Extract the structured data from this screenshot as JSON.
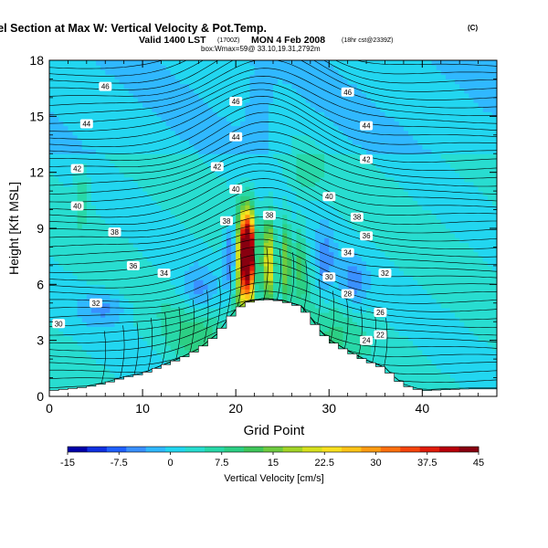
{
  "chart_data": {
    "type": "heatmap",
    "title": {
      "main": "Wind-Parallel Section at Max W: Vertical Velocity & Pot.Temp.",
      "main_mark": "(C)",
      "line2_a": "Valid 1400 LST",
      "line2_b": "(1700Z)",
      "line2_c": "MON 4 Feb 2008",
      "line2_d": "(18hr cst@2339Z)",
      "line3": "box:Wmax=59@ 33.10,19.31,2792m"
    },
    "xlabel": "Grid Point",
    "ylabel": "Height [Kft MSL]",
    "xlim": [
      0,
      48
    ],
    "ylim": [
      0,
      18
    ],
    "xticks": [
      "0",
      "10",
      "20",
      "30",
      "40"
    ],
    "yticks": [
      "0",
      "3",
      "6",
      "9",
      "12",
      "15",
      "18"
    ],
    "colorbar": {
      "label": "Vertical Velocity [cm/s]",
      "ticks": [
        "-15",
        "-7.5",
        "0",
        "7.5",
        "15",
        "22.5",
        "30",
        "37.5",
        "45"
      ],
      "min": -15,
      "max": 45,
      "colors": [
        "#0000a8",
        "#1030e0",
        "#2060ff",
        "#3a90ff",
        "#30b8ff",
        "#22d6f0",
        "#28ddd0",
        "#28d8a8",
        "#2ccf84",
        "#40c65a",
        "#6ecb40",
        "#a2d428",
        "#d6e01e",
        "#f8e020",
        "#ffc418",
        "#ff9c12",
        "#ff700e",
        "#f5440c",
        "#e01c0a",
        "#b8000a",
        "#880010"
      ]
    },
    "terrain_profile": [
      [
        0,
        0.3
      ],
      [
        2,
        0.4
      ],
      [
        4,
        0.5
      ],
      [
        6,
        0.7
      ],
      [
        8,
        1.0
      ],
      [
        10,
        1.2
      ],
      [
        12,
        1.6
      ],
      [
        14,
        2.0
      ],
      [
        16,
        2.5
      ],
      [
        18,
        3.3
      ],
      [
        19,
        4.0
      ],
      [
        20,
        4.6
      ],
      [
        21,
        5.0
      ],
      [
        23,
        5.2
      ],
      [
        25,
        5.1
      ],
      [
        27,
        4.8
      ],
      [
        28,
        4.2
      ],
      [
        29,
        3.5
      ],
      [
        30,
        3.0
      ],
      [
        32,
        2.4
      ],
      [
        34,
        1.9
      ],
      [
        36,
        1.5
      ],
      [
        37,
        1.0
      ],
      [
        38,
        0.6
      ],
      [
        40,
        0.3
      ],
      [
        42,
        0.35
      ],
      [
        45,
        0.4
      ],
      [
        48,
        0.4
      ]
    ],
    "isentrope_labels": [
      {
        "text": "46",
        "x": 6,
        "y": 16.6
      },
      {
        "text": "44",
        "x": 4,
        "y": 14.6
      },
      {
        "text": "42",
        "x": 3,
        "y": 12.2
      },
      {
        "text": "40",
        "x": 3,
        "y": 10.2
      },
      {
        "text": "38",
        "x": 7,
        "y": 8.8
      },
      {
        "text": "36",
        "x": 9,
        "y": 7.0
      },
      {
        "text": "34",
        "x": 12.3,
        "y": 6.6
      },
      {
        "text": "32",
        "x": 5,
        "y": 5.0
      },
      {
        "text": "30",
        "x": 1,
        "y": 3.9
      },
      {
        "text": "46",
        "x": 20,
        "y": 15.8
      },
      {
        "text": "44",
        "x": 20,
        "y": 13.9
      },
      {
        "text": "42",
        "x": 18,
        "y": 12.3
      },
      {
        "text": "40",
        "x": 20,
        "y": 11.1
      },
      {
        "text": "38",
        "x": 19,
        "y": 9.4
      },
      {
        "text": "38",
        "x": 23.6,
        "y": 9.7
      },
      {
        "text": "46",
        "x": 32,
        "y": 16.3
      },
      {
        "text": "44",
        "x": 34,
        "y": 14.5
      },
      {
        "text": "42",
        "x": 34,
        "y": 12.7
      },
      {
        "text": "40",
        "x": 30,
        "y": 10.7
      },
      {
        "text": "38",
        "x": 33,
        "y": 9.6
      },
      {
        "text": "36",
        "x": 34,
        "y": 8.6
      },
      {
        "text": "34",
        "x": 32,
        "y": 7.7
      },
      {
        "text": "32",
        "x": 36,
        "y": 6.6
      },
      {
        "text": "30",
        "x": 30,
        "y": 6.4
      },
      {
        "text": "28",
        "x": 32,
        "y": 5.5
      },
      {
        "text": "26",
        "x": 35.5,
        "y": 4.5
      },
      {
        "text": "24",
        "x": 34,
        "y": 3.0
      },
      {
        "text": "22",
        "x": 35.5,
        "y": 3.3
      }
    ]
  }
}
